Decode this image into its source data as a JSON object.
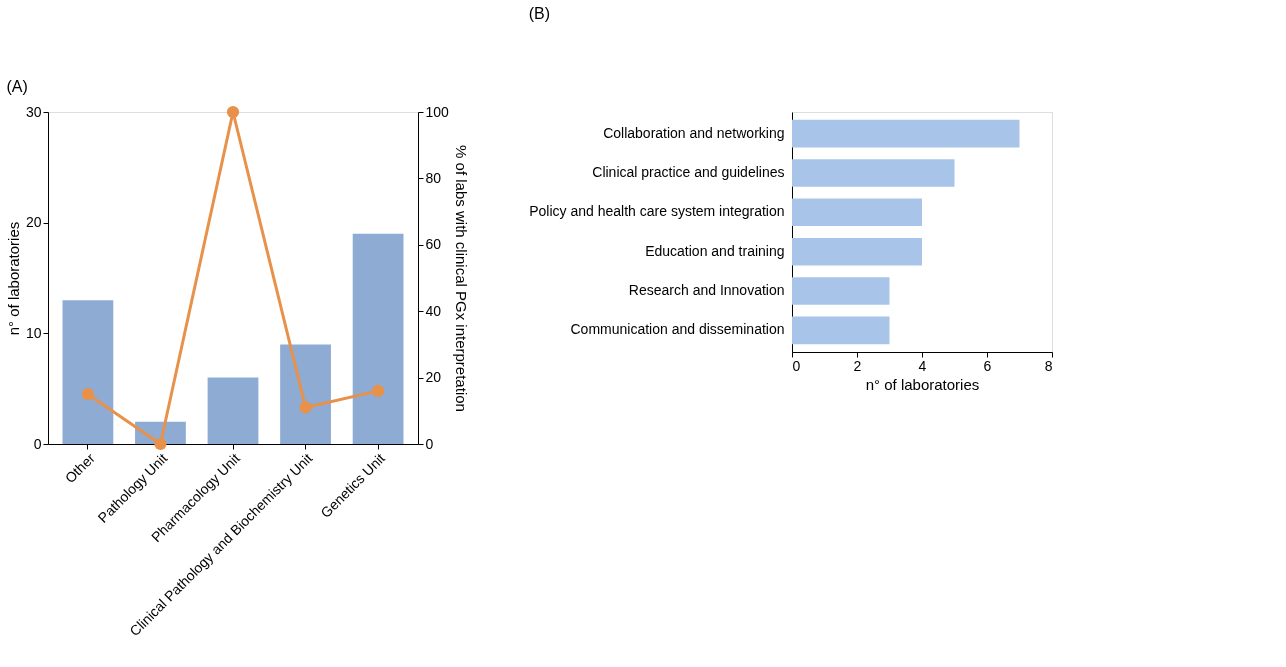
{
  "chart_data": [
    {
      "type": "bar",
      "title": "(A)",
      "categories": [
        "Other",
        "Pathology Unit",
        "Pharmacology Unit",
        "Clinical Pathology and Biochemistry Unit",
        "Genetics Unit"
      ],
      "series": [
        {
          "type": "bar",
          "color": "#8eabd4",
          "values": [
            13,
            2,
            6,
            9,
            19
          ]
        },
        {
          "type": "line",
          "axis": "y2",
          "color": "#e8914a",
          "values": [
            15,
            0,
            100,
            11,
            16
          ]
        }
      ],
      "ylabel": "n° of laboratories",
      "y2label": "% of labs with clinical PGx interpretation",
      "ylim": [
        0,
        30
      ],
      "yticks": [
        0,
        10,
        20,
        30
      ],
      "y2lim": [
        0,
        100
      ],
      "y2ticks": [
        0,
        20,
        40,
        60,
        80,
        100
      ],
      "marker": "circle",
      "line_style": "solid",
      "grid": false
    },
    {
      "type": "bar",
      "title": "(B)",
      "orientation": "horizontal",
      "categories": [
        "Collaboration and networking",
        "Clinical practice and guidelines",
        "Policy and health care system integration",
        "Education and training",
        "Research and Innovation",
        "Communication and dissemination"
      ],
      "values": [
        7,
        5,
        4,
        4,
        3,
        3
      ],
      "color": "#a8c4e8",
      "xlabel": "n° of laboratories",
      "xlim": [
        0,
        8
      ],
      "xticks": [
        0,
        2,
        4,
        6,
        8
      ],
      "grid": false
    }
  ]
}
